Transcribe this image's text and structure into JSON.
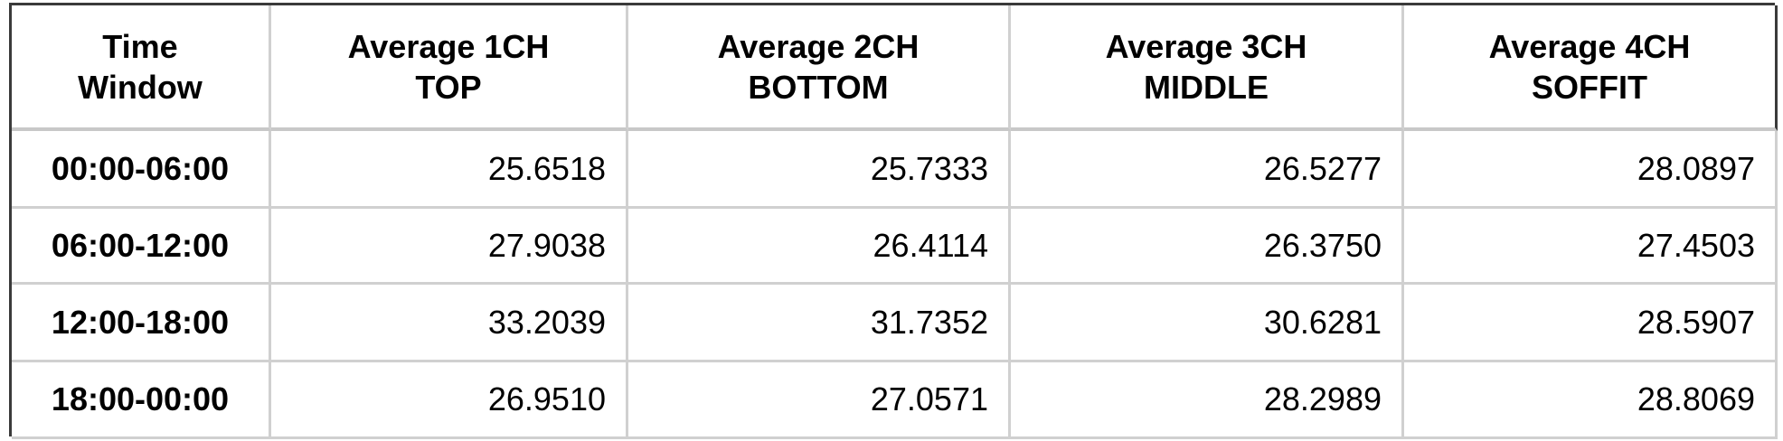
{
  "table": {
    "header": [
      "Time\nWindow",
      "Average 1CH\nTOP",
      "Average 2CH\nBOTTOM",
      "Average 3CH\nMIDDLE",
      "Average 4CH\nSOFFIT"
    ],
    "rows": [
      [
        "00:00-06:00",
        "25.6518",
        "25.7333",
        "26.5277",
        "28.0897"
      ],
      [
        "06:00-12:00",
        "27.9038",
        "26.4114",
        "26.3750",
        "27.4503"
      ],
      [
        "12:00-18:00",
        "33.2039",
        "31.7352",
        "30.6281",
        "28.5907"
      ],
      [
        "18:00-00:00",
        "26.9510",
        "27.0571",
        "28.2989",
        "28.8069"
      ]
    ]
  }
}
